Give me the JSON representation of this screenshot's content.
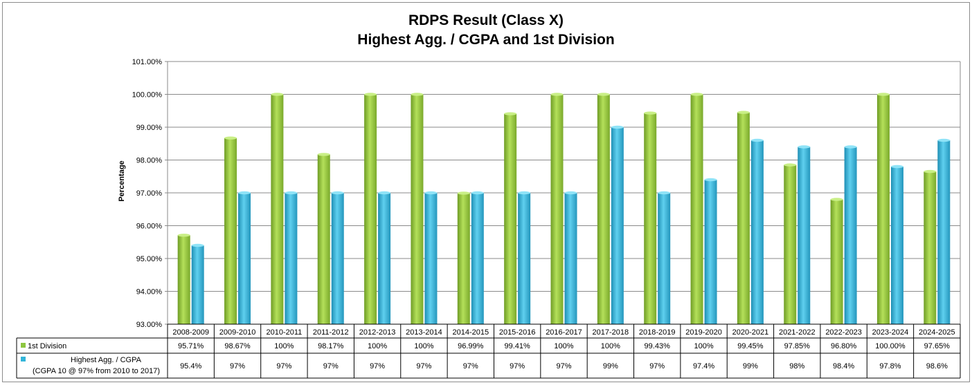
{
  "chart_data": {
    "type": "bar",
    "title": [
      "RDPS Result (Class X)",
      "Highest Agg. / CGPA and 1st Division"
    ],
    "ylabel": "Percentage",
    "ylim": [
      93,
      101
    ],
    "yticks": [
      "101.00%",
      "100.00%",
      "99.00%",
      "98.00%",
      "97.00%",
      "96.00%",
      "95.00%",
      "94.00%",
      "93.00%"
    ],
    "grid": true,
    "legend": "data-table-left",
    "categories": [
      "2008-2009",
      "2009-2010",
      "2010-2011",
      "2011-2012",
      "2012-2013",
      "2013-2014",
      "2014-2015",
      "2015-2016",
      "2016-2017",
      "2017-2018",
      "2018-2019",
      "2019-2020",
      "2020-2021",
      "2021-2022",
      "2022-2023",
      "2023-2024",
      "2024-2025"
    ],
    "series": [
      {
        "name": "1st Division",
        "color": "#8dc63f",
        "values": [
          95.71,
          98.67,
          100,
          98.17,
          100,
          100,
          96.99,
          99.41,
          100,
          100,
          99.43,
          100,
          99.45,
          97.85,
          96.8,
          100.0,
          97.65
        ],
        "labels": [
          "95.71%",
          "98.67%",
          "100%",
          "98.17%",
          "100%",
          "100%",
          "96.99%",
          "99.41%",
          "100%",
          "100%",
          "99.43%",
          "100%",
          "99.45%",
          "97.85%",
          "96.80%",
          "100.00%",
          "97.65%"
        ]
      },
      {
        "name": "Highest Agg. / CGPA",
        "name_note": "(CGPA 10 @ 97% from 2010 to 2017)",
        "color": "#33b5d9",
        "values": [
          95.4,
          97,
          97,
          97,
          97,
          97,
          97,
          97,
          97,
          99,
          97,
          97.4,
          98.6,
          98.4,
          98.4,
          97.8,
          98.6
        ],
        "labels": [
          "95.4%",
          "97%",
          "97%",
          "97%",
          "97%",
          "97%",
          "97%",
          "97%",
          "97%",
          "99%",
          "97%",
          "97.4%",
          "99%",
          "98%",
          "98.4%",
          "97.8%",
          "98.6%"
        ]
      }
    ]
  }
}
